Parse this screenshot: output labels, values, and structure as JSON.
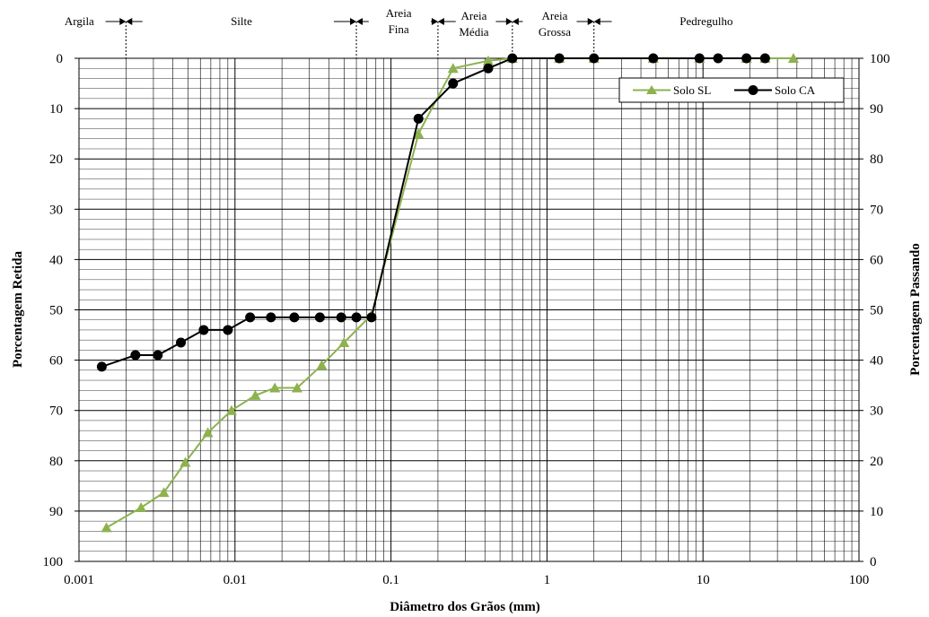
{
  "chart_data": {
    "type": "line",
    "x_scale": "log",
    "xlim": [
      0.001,
      100
    ],
    "ylim_left": [
      0,
      100
    ],
    "ylim_right": [
      0,
      100
    ],
    "left_axis_inverted": true,
    "xlabel": "Diâmetro dos Grãos (mm)",
    "ylabel_left": "Porcentagem Retida",
    "ylabel_right": "Porcentagem Passando",
    "x_tick_labels": [
      "0.001",
      "0.01",
      "0.1",
      "1",
      "10",
      "100"
    ],
    "x_tick_values": [
      0.001,
      0.01,
      0.1,
      1,
      10,
      100
    ],
    "y_left_tick_labels": [
      "0",
      "10",
      "20",
      "30",
      "40",
      "50",
      "60",
      "70",
      "80",
      "90",
      "100"
    ],
    "y_right_tick_labels": [
      "100",
      "90",
      "80",
      "70",
      "60",
      "50",
      "40",
      "30",
      "20",
      "10",
      "0"
    ],
    "grid": true,
    "legend_position": "top-right",
    "series": [
      {
        "name": "Solo SL",
        "color": "#8db24e",
        "marker": "triangle",
        "x": [
          0.0015,
          0.0025,
          0.0035,
          0.0048,
          0.0067,
          0.0095,
          0.0135,
          0.018,
          0.025,
          0.036,
          0.05,
          0.075,
          0.15,
          0.25,
          0.42,
          0.6,
          1.2,
          2.0,
          4.8,
          9.5,
          19,
          25,
          38
        ],
        "y_passing": [
          6.7,
          10.7,
          13.7,
          19.7,
          25.6,
          30.0,
          33.0,
          34.5,
          34.5,
          39.0,
          43.5,
          49.0,
          85.0,
          98.0,
          99.5,
          100,
          100,
          100,
          100,
          100,
          100,
          100,
          100
        ]
      },
      {
        "name": "Solo CA",
        "color": "#000000",
        "marker": "circle",
        "x": [
          0.0014,
          0.0023,
          0.0032,
          0.0045,
          0.0063,
          0.009,
          0.0125,
          0.017,
          0.024,
          0.035,
          0.048,
          0.06,
          0.075,
          0.15,
          0.25,
          0.42,
          0.6,
          1.2,
          2.0,
          4.8,
          9.5,
          12.5,
          19,
          25
        ],
        "y_passing": [
          38.7,
          41.0,
          41.0,
          43.5,
          46.0,
          46.0,
          48.5,
          48.5,
          48.5,
          48.5,
          48.5,
          48.5,
          48.5,
          88.0,
          95.0,
          98.0,
          100,
          100,
          100,
          100,
          100,
          100,
          100,
          100
        ]
      }
    ],
    "size_bands": {
      "boundaries": [
        0.002,
        0.06,
        0.2,
        0.6,
        2.0
      ],
      "labels": [
        {
          "text": "Argila"
        },
        {
          "text": "Silte"
        },
        {
          "text": "Areia"
        },
        {
          "text": "Fina"
        },
        {
          "text": "Areia"
        },
        {
          "text": "Média"
        },
        {
          "text": "Areia"
        },
        {
          "text": "Grossa"
        },
        {
          "text": "Pedregulho"
        }
      ]
    }
  }
}
